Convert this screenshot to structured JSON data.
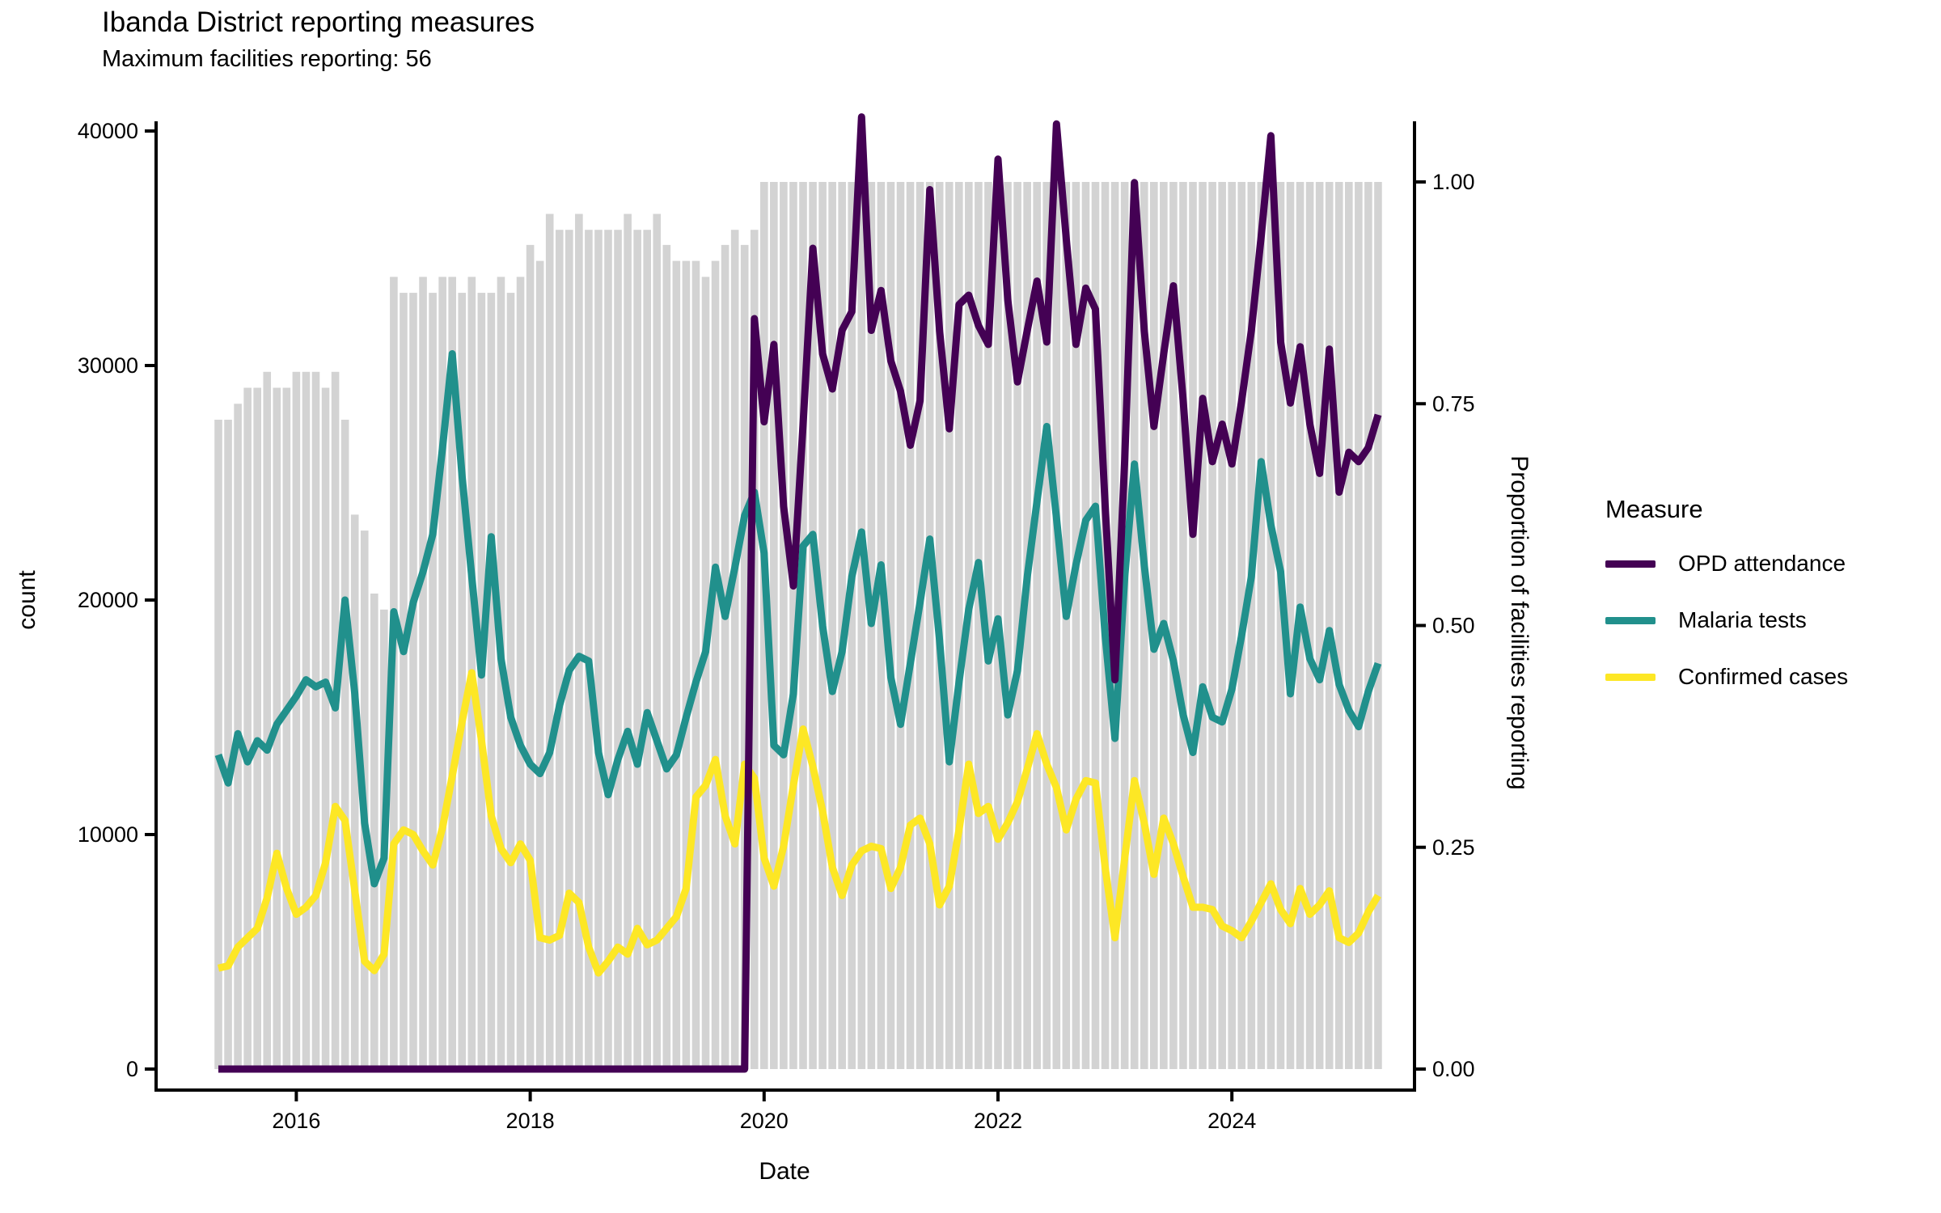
{
  "chart_data": {
    "type": "line",
    "title": "Ibanda District reporting measures",
    "subtitle": "Maximum facilities reporting: 56",
    "x_axis": {
      "label": "Date",
      "start_month": "2015-05",
      "end_month": "2025-04",
      "cadence": "monthly",
      "tick_labels": [
        "2016",
        "2018",
        "2020",
        "2022",
        "2024"
      ],
      "tick_month_indices": [
        8,
        32,
        56,
        80,
        104
      ]
    },
    "y_left": {
      "label": "count",
      "tick_labels": [
        "0",
        "10000",
        "20000",
        "30000",
        "40000"
      ],
      "tick_values": [
        0,
        10000,
        20000,
        30000,
        40000
      ],
      "range": [
        0,
        40000
      ]
    },
    "y_right": {
      "label": "Proportion of facilities reporting",
      "tick_labels": [
        "0.00",
        "0.25",
        "0.50",
        "0.75",
        "1.00"
      ],
      "tick_values": [
        0,
        0.25,
        0.5,
        0.75,
        1.0
      ],
      "range": [
        0,
        1
      ]
    },
    "legend": {
      "title": "Measure",
      "items": [
        {
          "label": "OPD attendance",
          "color": "#440154"
        },
        {
          "label": "Malaria tests",
          "color": "#21908C"
        },
        {
          "label": "Confirmed cases",
          "color": "#FDE725"
        }
      ]
    },
    "bars": {
      "name": "Proportion of facilities reporting",
      "color": "#D3D3D3",
      "values": [
        0.732,
        0.732,
        0.75,
        0.768,
        0.768,
        0.786,
        0.768,
        0.768,
        0.786,
        0.786,
        0.786,
        0.768,
        0.786,
        0.732,
        0.625,
        0.607,
        0.536,
        0.518,
        0.893,
        0.875,
        0.875,
        0.893,
        0.875,
        0.893,
        0.893,
        0.875,
        0.893,
        0.875,
        0.875,
        0.893,
        0.875,
        0.893,
        0.929,
        0.911,
        0.964,
        0.946,
        0.946,
        0.964,
        0.946,
        0.946,
        0.946,
        0.946,
        0.964,
        0.946,
        0.946,
        0.964,
        0.929,
        0.911,
        0.911,
        0.911,
        0.893,
        0.911,
        0.929,
        0.946,
        0.929,
        0.946,
        1,
        1,
        1,
        1,
        1,
        1,
        1,
        1,
        1,
        1,
        1,
        1,
        1,
        1,
        1,
        1,
        1,
        1,
        1,
        1,
        1,
        1,
        1,
        1,
        1,
        1,
        1,
        1,
        1,
        1,
        1,
        1,
        1,
        1,
        1,
        1,
        1,
        1,
        1,
        1,
        1,
        1,
        1,
        1,
        1,
        1,
        1,
        1,
        1,
        1,
        1,
        1,
        1,
        1,
        1,
        1,
        1,
        1,
        1,
        1,
        1,
        1,
        1,
        1
      ]
    },
    "series": [
      {
        "name": "OPD attendance",
        "color": "#440154",
        "values": [
          0,
          0,
          0,
          0,
          0,
          0,
          0,
          0,
          0,
          0,
          0,
          0,
          0,
          0,
          0,
          0,
          0,
          0,
          0,
          0,
          0,
          0,
          0,
          0,
          0,
          0,
          0,
          0,
          0,
          0,
          0,
          0,
          0,
          0,
          0,
          0,
          0,
          0,
          0,
          0,
          0,
          0,
          0,
          0,
          0,
          0,
          0,
          0,
          0,
          0,
          0,
          0,
          0,
          0,
          0,
          32000,
          27600,
          30900,
          24000,
          20600,
          27500,
          35000,
          30500,
          29000,
          31500,
          32300,
          40600,
          31500,
          33200,
          30200,
          28900,
          26600,
          28500,
          37500,
          31500,
          27300,
          32600,
          33000,
          31700,
          30900,
          38800,
          32800,
          29300,
          31500,
          33600,
          31000,
          40300,
          35400,
          30900,
          33300,
          32400,
          24000,
          16600,
          26000,
          37800,
          31500,
          27400,
          30500,
          33400,
          28500,
          22800,
          28600,
          25900,
          27500,
          25800,
          28500,
          31500,
          35500,
          39800,
          31000,
          28400,
          30800,
          27500,
          25400,
          30700,
          24600,
          26300,
          25900,
          26500,
          27900
        ]
      },
      {
        "name": "Malaria tests",
        "color": "#21908C",
        "values": [
          13400,
          12200,
          14300,
          13100,
          14000,
          13600,
          14700,
          15300,
          15900,
          16600,
          16300,
          16500,
          15400,
          20000,
          16000,
          10500,
          7900,
          9000,
          19500,
          17800,
          19900,
          21200,
          22800,
          26500,
          30500,
          25300,
          21000,
          16800,
          22700,
          17500,
          15000,
          13800,
          13000,
          12600,
          13500,
          15500,
          17000,
          17600,
          17400,
          13500,
          11700,
          13200,
          14400,
          13000,
          15200,
          14000,
          12800,
          13400,
          15000,
          16500,
          17800,
          21400,
          19300,
          21400,
          23600,
          24600,
          22000,
          13800,
          13400,
          16000,
          22300,
          22800,
          18900,
          16100,
          17800,
          21000,
          22900,
          19000,
          21500,
          16700,
          14700,
          17300,
          19900,
          22600,
          18300,
          13100,
          16500,
          19600,
          21600,
          17400,
          19200,
          15100,
          17000,
          21000,
          24200,
          27400,
          23500,
          19300,
          21500,
          23400,
          24000,
          18500,
          14100,
          21000,
          25800,
          21500,
          17900,
          19000,
          17400,
          15100,
          13500,
          16300,
          15000,
          14800,
          16200,
          18500,
          21000,
          25900,
          23200,
          21200,
          16000,
          19700,
          17500,
          16600,
          18700,
          16400,
          15300,
          14600,
          16100,
          17300
        ]
      },
      {
        "name": "Confirmed cases",
        "color": "#FDE725",
        "values": [
          4300,
          4400,
          5200,
          5600,
          6000,
          7300,
          9200,
          7700,
          6600,
          6900,
          7400,
          8800,
          11200,
          10600,
          7600,
          4600,
          4200,
          4900,
          9600,
          10200,
          10000,
          9300,
          8700,
          10300,
          12500,
          14800,
          16900,
          14000,
          10800,
          9400,
          8800,
          9600,
          8900,
          5600,
          5500,
          5700,
          7500,
          7100,
          5200,
          4100,
          4600,
          5200,
          4900,
          6000,
          5300,
          5500,
          6000,
          6500,
          7700,
          11600,
          12100,
          13200,
          10800,
          9600,
          13000,
          12400,
          9000,
          7800,
          9500,
          12100,
          14500,
          12900,
          11000,
          8600,
          7400,
          8700,
          9300,
          9500,
          9400,
          7700,
          8600,
          10400,
          10700,
          9600,
          7000,
          7800,
          10200,
          13000,
          10900,
          11200,
          9800,
          10500,
          11400,
          12800,
          14300,
          13000,
          12000,
          10200,
          11500,
          12300,
          12200,
          8600,
          5600,
          9000,
          12300,
          10500,
          8300,
          10700,
          9600,
          8200,
          6900,
          6900,
          6800,
          6100,
          5900,
          5600,
          6300,
          7100,
          7900,
          6800,
          6200,
          7700,
          6600,
          7000,
          7600,
          5600,
          5400,
          5800,
          6700,
          7400
        ]
      }
    ]
  }
}
